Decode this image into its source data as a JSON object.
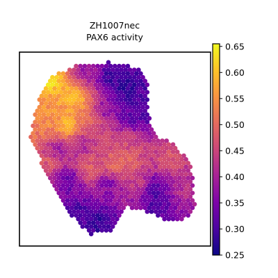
{
  "chart_data": {
    "type": "scatter",
    "title": "ZH1007nec",
    "subtitle": "PAX6 activity",
    "xlabel": "",
    "ylabel": "",
    "grid": false,
    "colormap": "plasma",
    "colorbar": {
      "vmin": 0.25,
      "vmax": 0.655,
      "ticks": [
        {
          "value": 0.25,
          "label": "0.25"
        },
        {
          "value": 0.3,
          "label": "0.30"
        },
        {
          "value": 0.35,
          "label": "0.35"
        },
        {
          "value": 0.4,
          "label": "0.40"
        },
        {
          "value": 0.45,
          "label": "0.45"
        },
        {
          "value": 0.5,
          "label": "0.50"
        },
        {
          "value": 0.55,
          "label": "0.55"
        },
        {
          "value": 0.6,
          "label": "0.60"
        },
        {
          "value": 0.65,
          "label": "0.65"
        }
      ]
    },
    "tissue_region": [
      [
        0.17,
        0.12
      ],
      [
        0.3,
        0.07
      ],
      [
        0.47,
        0.05
      ],
      [
        0.62,
        0.08
      ],
      [
        0.68,
        0.18
      ],
      [
        0.67,
        0.3
      ],
      [
        0.72,
        0.45
      ],
      [
        0.8,
        0.46
      ],
      [
        0.9,
        0.58
      ],
      [
        0.92,
        0.8
      ],
      [
        0.85,
        0.88
      ],
      [
        0.74,
        0.86
      ],
      [
        0.66,
        0.82
      ],
      [
        0.55,
        0.8
      ],
      [
        0.49,
        0.92
      ],
      [
        0.37,
        0.94
      ],
      [
        0.28,
        0.85
      ],
      [
        0.2,
        0.75
      ],
      [
        0.12,
        0.58
      ],
      [
        0.05,
        0.45
      ],
      [
        0.08,
        0.3
      ],
      [
        0.12,
        0.2
      ]
    ],
    "hotspots": [
      {
        "x": 0.15,
        "y": 0.15,
        "value": 0.65
      },
      {
        "x": 0.27,
        "y": 0.23,
        "value": 0.6
      },
      {
        "x": 0.31,
        "y": 0.25,
        "value": 0.58
      },
      {
        "x": 0.25,
        "y": 0.38,
        "value": 0.62
      },
      {
        "x": 0.17,
        "y": 0.33,
        "value": 0.55
      },
      {
        "x": 0.1,
        "y": 0.4,
        "value": 0.52
      },
      {
        "x": 0.11,
        "y": 0.22,
        "value": 0.55
      },
      {
        "x": 0.38,
        "y": 0.36,
        "value": 0.5
      },
      {
        "x": 0.5,
        "y": 0.58,
        "value": 0.52
      },
      {
        "x": 0.58,
        "y": 0.58,
        "value": 0.5
      },
      {
        "x": 0.36,
        "y": 0.6,
        "value": 0.5
      },
      {
        "x": 0.15,
        "y": 0.57,
        "value": 0.48
      },
      {
        "x": 0.45,
        "y": 0.45,
        "value": 0.45
      },
      {
        "x": 0.57,
        "y": 0.45,
        "value": 0.47
      },
      {
        "x": 0.78,
        "y": 0.55,
        "value": 0.48
      },
      {
        "x": 0.85,
        "y": 0.7,
        "value": 0.42
      },
      {
        "x": 0.62,
        "y": 0.67,
        "value": 0.45
      },
      {
        "x": 0.35,
        "y": 0.1,
        "value": 0.38
      },
      {
        "x": 0.56,
        "y": 0.18,
        "value": 0.27
      },
      {
        "x": 0.48,
        "y": 0.13,
        "value": 0.28
      },
      {
        "x": 0.62,
        "y": 0.25,
        "value": 0.3
      },
      {
        "x": 0.58,
        "y": 0.35,
        "value": 0.32
      },
      {
        "x": 0.63,
        "y": 0.33,
        "value": 0.3
      },
      {
        "x": 0.7,
        "y": 0.7,
        "value": 0.3
      },
      {
        "x": 0.72,
        "y": 0.78,
        "value": 0.3
      },
      {
        "x": 0.32,
        "y": 0.83,
        "value": 0.3
      },
      {
        "x": 0.42,
        "y": 0.88,
        "value": 0.28
      },
      {
        "x": 0.26,
        "y": 0.66,
        "value": 0.32
      },
      {
        "x": 0.47,
        "y": 0.68,
        "value": 0.35
      },
      {
        "x": 0.2,
        "y": 0.5,
        "value": 0.38
      },
      {
        "x": 0.33,
        "y": 0.48,
        "value": 0.4
      },
      {
        "x": 0.44,
        "y": 0.3,
        "value": 0.36
      }
    ]
  }
}
